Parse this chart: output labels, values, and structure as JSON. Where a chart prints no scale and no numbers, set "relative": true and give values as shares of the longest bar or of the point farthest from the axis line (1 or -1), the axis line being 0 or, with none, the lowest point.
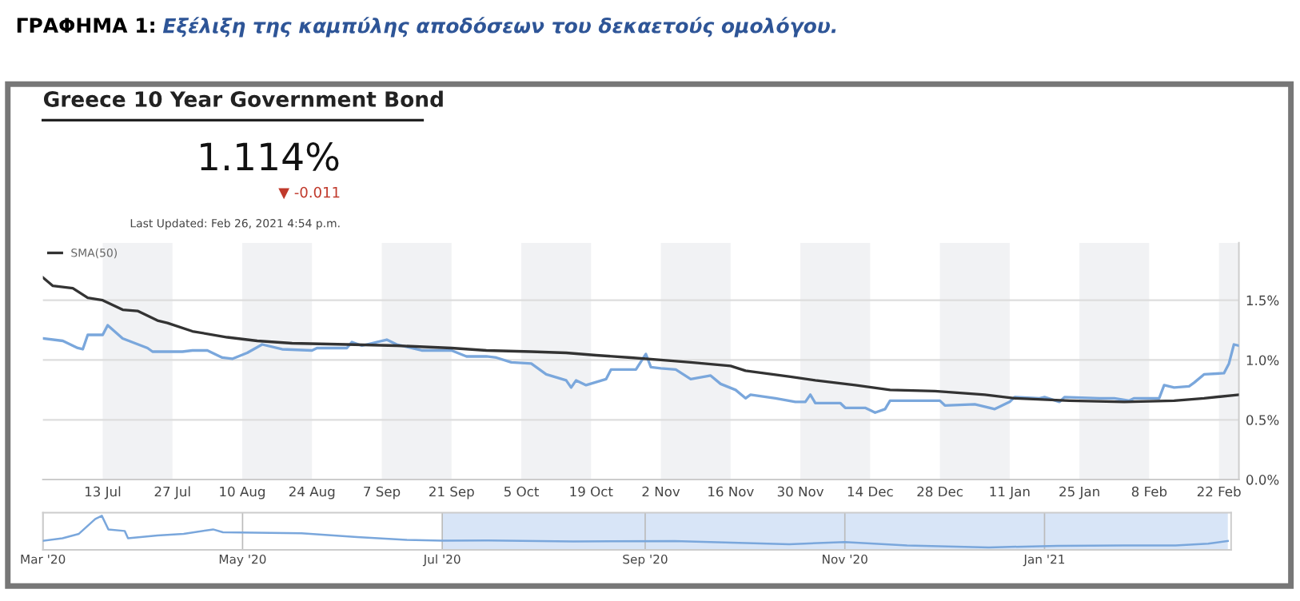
{
  "chart_data": [
    {
      "type": "line",
      "title": "ΓΡΑΦΗΜΑ 1:",
      "subtitle": "Εξέλιξη της καμπύλης αποδόσεων του δεκαετούς ομολόγου.",
      "annotations": [
        "Greece 10 Year Government Bond",
        "1.114%",
        "▼ -0.011",
        "Last Updated: Feb 26, 2021 4:54 p.m."
      ],
      "series": [
        {
          "color": "#7aa7dc",
          "x": [
            "2020-07-01",
            "2020-07-05",
            "2020-07-08",
            "2020-07-09",
            "2020-07-10",
            "2020-07-13",
            "2020-07-14",
            "2020-07-17",
            "2020-07-22",
            "2020-07-23",
            "2020-07-29",
            "2020-07-31",
            "2020-08-03",
            "2020-08-06",
            "2020-08-08",
            "2020-08-11",
            "2020-08-14",
            "2020-08-18",
            "2020-08-24",
            "2020-08-25",
            "2020-08-31",
            "2020-09-01",
            "2020-09-03",
            "2020-09-08",
            "2020-09-10",
            "2020-09-15",
            "2020-09-21",
            "2020-09-24",
            "2020-09-28",
            "2020-09-30",
            "2020-10-03",
            "2020-10-07",
            "2020-10-10",
            "2020-10-14",
            "2020-10-15",
            "2020-10-16",
            "2020-10-18",
            "2020-10-22",
            "2020-10-23",
            "2020-10-28",
            "2020-10-30",
            "2020-10-31",
            "2020-11-02",
            "2020-11-05",
            "2020-11-08",
            "2020-11-12",
            "2020-11-14",
            "2020-11-17",
            "2020-11-19",
            "2020-11-20",
            "2020-11-25",
            "2020-11-29",
            "2020-12-01",
            "2020-12-02",
            "2020-12-03",
            "2020-12-08",
            "2020-12-09",
            "2020-12-13",
            "2020-12-15",
            "2020-12-17",
            "2020-12-18",
            "2020-12-24",
            "2020-12-28",
            "2020-12-29",
            "2021-01-04",
            "2021-01-08",
            "2021-01-11",
            "2021-01-12",
            "2021-01-17",
            "2021-01-18",
            "2021-01-21",
            "2021-01-22",
            "2021-01-29",
            "2021-02-01",
            "2021-02-04",
            "2021-02-05",
            "2021-02-10",
            "2021-02-11",
            "2021-02-13",
            "2021-02-16",
            "2021-02-17",
            "2021-02-19",
            "2021-02-23",
            "2021-02-24",
            "2021-02-25",
            "2021-02-26"
          ],
          "values": [
            1.18,
            1.16,
            1.1,
            1.09,
            1.21,
            1.21,
            1.29,
            1.18,
            1.1,
            1.07,
            1.07,
            1.08,
            1.08,
            1.02,
            1.01,
            1.06,
            1.13,
            1.09,
            1.08,
            1.1,
            1.1,
            1.15,
            1.12,
            1.17,
            1.13,
            1.08,
            1.08,
            1.03,
            1.03,
            1.02,
            0.98,
            0.97,
            0.88,
            0.83,
            0.77,
            0.83,
            0.79,
            0.84,
            0.92,
            0.92,
            1.05,
            0.94,
            0.93,
            0.92,
            0.84,
            0.87,
            0.8,
            0.75,
            0.68,
            0.71,
            0.68,
            0.65,
            0.65,
            0.71,
            0.64,
            0.64,
            0.6,
            0.6,
            0.56,
            0.59,
            0.66,
            0.66,
            0.66,
            0.62,
            0.63,
            0.59,
            0.65,
            0.69,
            0.68,
            0.69,
            0.65,
            0.69,
            0.68,
            0.68,
            0.66,
            0.68,
            0.68,
            0.79,
            0.77,
            0.78,
            0.81,
            0.88,
            0.89,
            0.97,
            1.13,
            1.12
          ]
        },
        {
          "name": "SMA(50)",
          "color": "#333333",
          "x": [
            "2020-07-01",
            "2020-07-03",
            "2020-07-07",
            "2020-07-10",
            "2020-07-13",
            "2020-07-17",
            "2020-07-20",
            "2020-07-24",
            "2020-07-26",
            "2020-07-31",
            "2020-08-07",
            "2020-08-13",
            "2020-08-20",
            "2020-08-31",
            "2020-09-10",
            "2020-09-21",
            "2020-09-28",
            "2020-10-07",
            "2020-10-14",
            "2020-10-20",
            "2020-10-27",
            "2020-11-02",
            "2020-11-08",
            "2020-11-16",
            "2020-11-19",
            "2020-11-28",
            "2020-12-03",
            "2020-12-11",
            "2020-12-18",
            "2020-12-27",
            "2021-01-06",
            "2021-01-12",
            "2021-01-23",
            "2021-02-03",
            "2021-02-13",
            "2021-02-19",
            "2021-02-26"
          ],
          "values": [
            1.69,
            1.62,
            1.6,
            1.52,
            1.5,
            1.42,
            1.41,
            1.33,
            1.31,
            1.24,
            1.19,
            1.16,
            1.14,
            1.13,
            1.12,
            1.1,
            1.08,
            1.07,
            1.06,
            1.04,
            1.02,
            1.0,
            0.98,
            0.95,
            0.91,
            0.86,
            0.83,
            0.79,
            0.75,
            0.74,
            0.71,
            0.68,
            0.66,
            0.65,
            0.66,
            0.68,
            0.71
          ]
        }
      ],
      "xlim": [
        "2020-07-01",
        "2021-02-26"
      ],
      "xticks": [
        {
          "value": "2020-07-13",
          "label": "13 Jul"
        },
        {
          "value": "2020-07-27",
          "label": "27 Jul"
        },
        {
          "value": "2020-08-10",
          "label": "10 Aug"
        },
        {
          "value": "2020-08-24",
          "label": "24 Aug"
        },
        {
          "value": "2020-09-07",
          "label": "7 Sep"
        },
        {
          "value": "2020-09-21",
          "label": "21 Sep"
        },
        {
          "value": "2020-10-05",
          "label": "5 Oct"
        },
        {
          "value": "2020-10-19",
          "label": "19 Oct"
        },
        {
          "value": "2020-11-02",
          "label": "2 Nov"
        },
        {
          "value": "2020-11-16",
          "label": "16 Nov"
        },
        {
          "value": "2020-11-30",
          "label": "30 Nov"
        },
        {
          "value": "2020-12-14",
          "label": "14 Dec"
        },
        {
          "value": "2020-12-28",
          "label": "28 Dec"
        },
        {
          "value": "2021-01-11",
          "label": "11 Jan"
        },
        {
          "value": "2021-01-25",
          "label": "25 Jan"
        },
        {
          "value": "2021-02-08",
          "label": "8 Feb"
        },
        {
          "value": "2021-02-22",
          "label": "22 Feb"
        }
      ],
      "ylim": [
        0,
        1.98
      ],
      "yticks": [
        {
          "value": 0,
          "label": "0.0%"
        },
        {
          "value": 0.5,
          "label": "0.5%"
        },
        {
          "value": 1.0,
          "label": "1.0%"
        },
        {
          "value": 1.5,
          "label": "1.5%"
        }
      ],
      "bands": [
        {
          "axis": "x",
          "from": "2020-07-13",
          "to": "2020-07-27",
          "color": "#f1f2f4"
        },
        {
          "axis": "x",
          "from": "2020-08-10",
          "to": "2020-08-24",
          "color": "#f1f2f4"
        },
        {
          "axis": "x",
          "from": "2020-09-07",
          "to": "2020-09-21",
          "color": "#f1f2f4"
        },
        {
          "axis": "x",
          "from": "2020-10-05",
          "to": "2020-10-19",
          "color": "#f1f2f4"
        },
        {
          "axis": "x",
          "from": "2020-11-02",
          "to": "2020-11-16",
          "color": "#f1f2f4"
        },
        {
          "axis": "x",
          "from": "2020-11-30",
          "to": "2020-12-14",
          "color": "#f1f2f4"
        },
        {
          "axis": "x",
          "from": "2020-12-28",
          "to": "2021-01-11",
          "color": "#f1f2f4"
        },
        {
          "axis": "x",
          "from": "2021-01-25",
          "to": "2021-02-08",
          "color": "#f1f2f4"
        },
        {
          "axis": "x",
          "from": "2021-02-22",
          "to": "2021-02-26",
          "color": "#f1f2f4"
        }
      ],
      "grid": "y",
      "legend": "top left"
    },
    {
      "type": "line",
      "relative": true,
      "series": [
        {
          "color": "#7aa7dc",
          "x": [
            "2020-03-01",
            "2020-03-07",
            "2020-03-12",
            "2020-03-17",
            "2020-03-19",
            "2020-03-21",
            "2020-03-26",
            "2020-03-27",
            "2020-04-05",
            "2020-04-13",
            "2020-04-22",
            "2020-04-25",
            "2020-05-19",
            "2020-06-05",
            "2020-06-20",
            "2020-07-01",
            "2020-07-15",
            "2020-08-10",
            "2020-09-10",
            "2020-10-15",
            "2020-11-01",
            "2020-11-20",
            "2020-12-15",
            "2021-01-05",
            "2021-01-25",
            "2021-02-10",
            "2021-02-20",
            "2021-02-26"
          ],
          "values": [
            0.21,
            0.29,
            0.43,
            0.9,
            1.0,
            0.57,
            0.52,
            0.29,
            0.38,
            0.43,
            0.57,
            0.48,
            0.45,
            0.33,
            0.24,
            0.21,
            0.22,
            0.19,
            0.2,
            0.1,
            0.17,
            0.06,
            0.0,
            0.05,
            0.06,
            0.06,
            0.12,
            0.2
          ]
        }
      ],
      "xlim": [
        "2020-03-01",
        "2021-02-27"
      ],
      "xticks": [
        {
          "value": "2020-03-01",
          "label": "Mar '20"
        },
        {
          "value": "2020-05-01",
          "label": "May '20"
        },
        {
          "value": "2020-07-01",
          "label": "Jul '20"
        },
        {
          "value": "2020-09-01",
          "label": "Sep '20"
        },
        {
          "value": "2020-11-01",
          "label": "Nov '20"
        },
        {
          "value": "2021-01-01",
          "label": "Jan '21"
        }
      ],
      "bands": [
        {
          "axis": "x",
          "from": "2020-07-01",
          "to": "2021-02-26",
          "color": "#d8e5f7"
        }
      ],
      "grid": "x",
      "tick_labels": "x"
    }
  ]
}
